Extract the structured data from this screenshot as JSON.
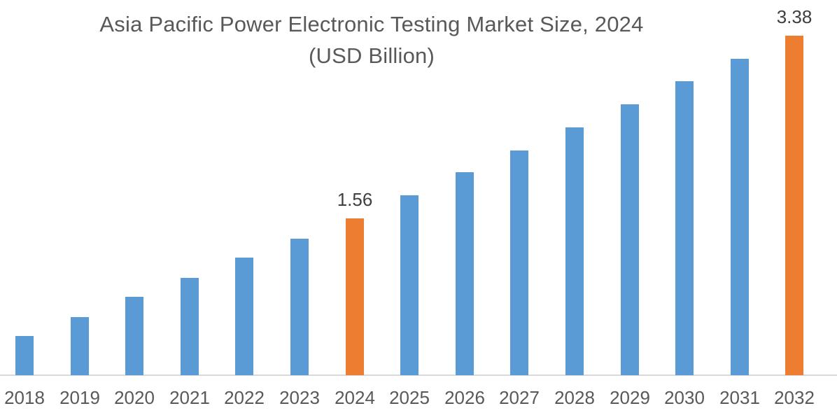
{
  "title": {
    "line1": "Asia Pacific Power Electronic Testing Market Size, 2024",
    "line2": "(USD Billion)"
  },
  "chart_data": {
    "type": "bar",
    "title": "Asia Pacific Power Electronic Testing Market Size, 2024 (USD Billion)",
    "unit": "USD Billion",
    "xlabel": "",
    "ylabel": "",
    "categories": [
      "2018",
      "2019",
      "2020",
      "2021",
      "2022",
      "2023",
      "2024",
      "2025",
      "2026",
      "2027",
      "2028",
      "2029",
      "2030",
      "2031",
      "2032"
    ],
    "values": [
      0.39,
      0.58,
      0.78,
      0.97,
      1.17,
      1.36,
      1.56,
      1.79,
      2.02,
      2.24,
      2.47,
      2.7,
      2.93,
      3.15,
      3.38
    ],
    "data_labels": [
      {
        "category": "2024",
        "text": "1.56"
      },
      {
        "category": "2032",
        "text": "3.38"
      }
    ],
    "highlight_categories": [
      "2024",
      "2032"
    ],
    "ylim": [
      0,
      3.5
    ],
    "grid": false,
    "legend": false,
    "colors": {
      "bar": "#5B9BD5",
      "highlight": "#ED7D31",
      "axis_line": "#D9D9D9",
      "tick_label": "#595959",
      "data_label": "#3F3F3F",
      "title": "#595959"
    }
  }
}
